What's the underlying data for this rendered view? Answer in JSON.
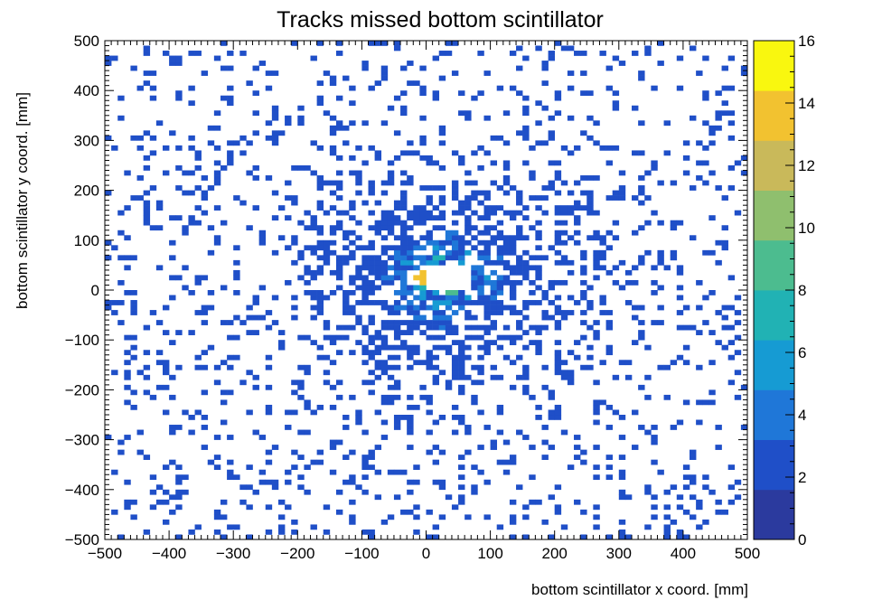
{
  "chart_data": {
    "type": "heatmap",
    "title": "Tracks missed bottom scintillator",
    "xlabel": "bottom scintillator x coord. [mm]",
    "ylabel": "bottom scintillator y coord. [mm]",
    "xlim": [
      -500,
      500
    ],
    "ylim": [
      -500,
      500
    ],
    "x_ticks": [
      "−500",
      "−400",
      "−300",
      "−200",
      "−100",
      "0",
      "100",
      "200",
      "300",
      "400",
      "500"
    ],
    "y_ticks": [
      "−500",
      "−400",
      "−300",
      "−200",
      "−100",
      "0",
      "100",
      "200",
      "300",
      "400",
      "500"
    ],
    "bins": {
      "nx": 100,
      "ny": 100,
      "bin_width_mm": 10
    },
    "colorbar": {
      "range": [
        0,
        16
      ],
      "ticks": [
        "0",
        "2",
        "4",
        "6",
        "8",
        "10",
        "12",
        "14",
        "16"
      ],
      "palette": [
        "#2b3a9e",
        "#1f4fc8",
        "#1f77d8",
        "#169bd3",
        "#21b2b4",
        "#4cbc8f",
        "#8fbf6e",
        "#c9b95a",
        "#f2c230",
        "#f9f70f"
      ]
    },
    "hole": {
      "x": [
        0,
        70
      ],
      "y": [
        -5,
        55
      ]
    },
    "distribution": {
      "description_values": "counts 1-16 per bin, peaked near (30, 25) mm, mostly 1 count in outer region"
    }
  }
}
